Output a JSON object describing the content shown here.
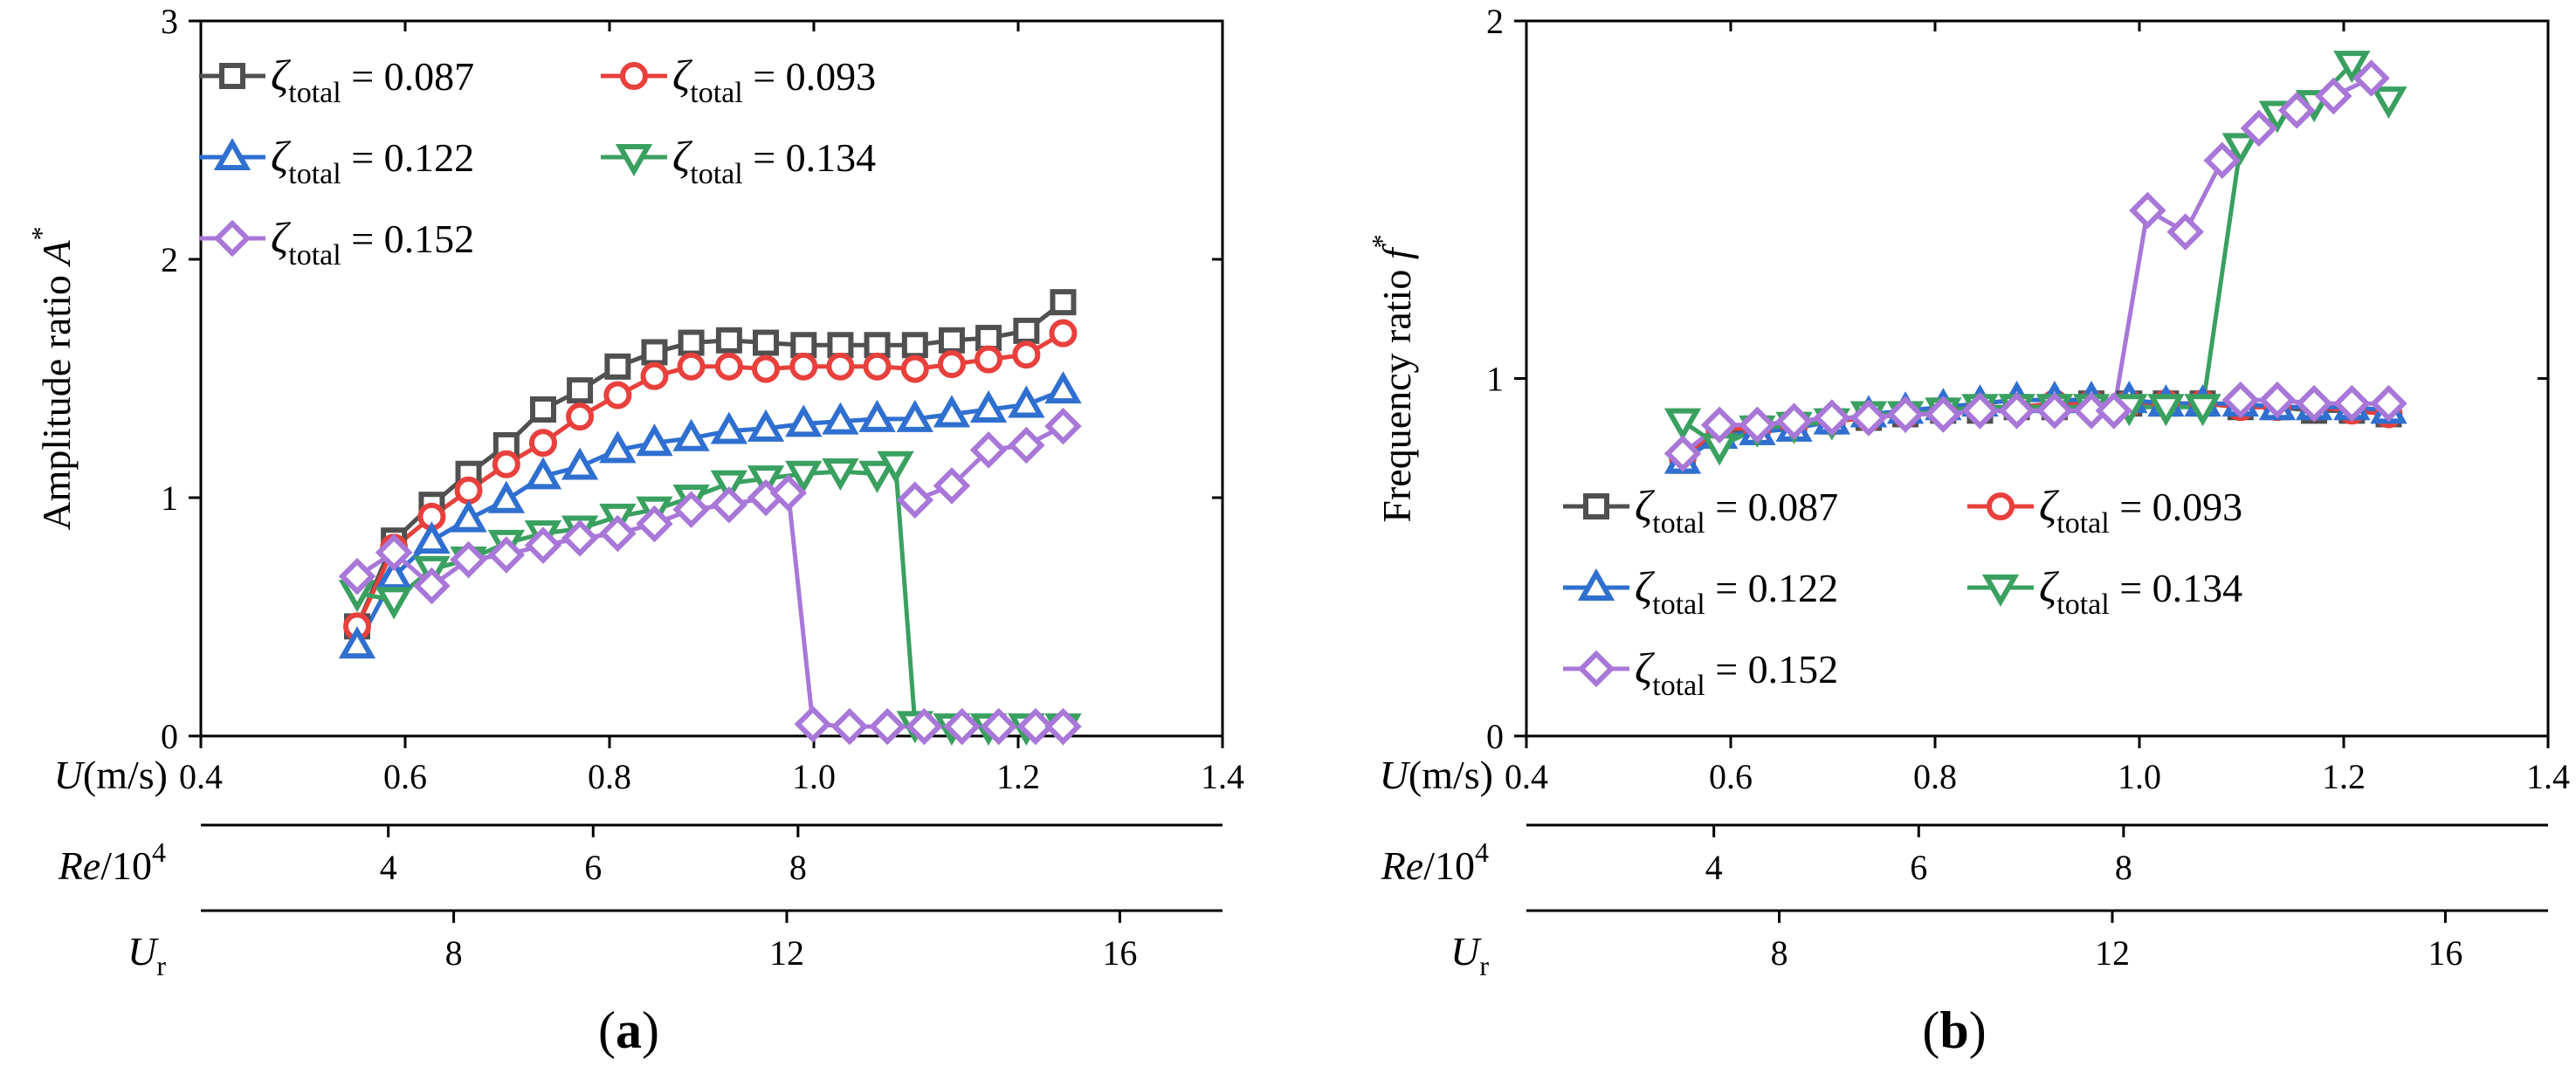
{
  "chart_data": [
    {
      "type": "line",
      "panel_label": [
        "(",
        "a",
        ")"
      ],
      "ylabel": [
        "Amplitude ratio ",
        "A",
        "*"
      ],
      "xlabel": [
        "U",
        "(m/s)"
      ],
      "xlim": [
        0.4,
        1.4
      ],
      "ylim": [
        0,
        3
      ],
      "xticks": [
        "0.4",
        "0.6",
        "0.8",
        "1.0",
        "1.2",
        "1.4"
      ],
      "yticks": [
        "0",
        "1",
        "2",
        "3"
      ],
      "legend_position": "top-left",
      "secondary_axes": [
        {
          "label": [
            "Re",
            "/10",
            "4"
          ],
          "ticks": [
            {
              "u": 0.5835,
              "label": "4"
            },
            {
              "u": 0.784,
              "label": "6"
            },
            {
              "u": 0.9845,
              "label": "8"
            }
          ]
        },
        {
          "label": [
            "U",
            "r"
          ],
          "ticks": [
            {
              "u": 0.6475,
              "label": "8"
            },
            {
              "u": 0.9735,
              "label": "12"
            },
            {
              "u": 1.2995,
              "label": "16"
            }
          ]
        }
      ],
      "series": [
        {
          "name": "0.087",
          "marker": "square",
          "color": "#505050",
          "x": [
            0.553,
            0.589,
            0.626,
            0.662,
            0.699,
            0.735,
            0.771,
            0.808,
            0.844,
            0.88,
            0.917,
            0.953,
            0.99,
            1.026,
            1.062,
            1.099,
            1.135,
            1.171,
            1.208,
            1.244
          ],
          "y": [
            0.46,
            0.82,
            0.97,
            1.1,
            1.22,
            1.37,
            1.45,
            1.55,
            1.61,
            1.65,
            1.66,
            1.65,
            1.64,
            1.64,
            1.64,
            1.64,
            1.66,
            1.67,
            1.7,
            1.82
          ]
        },
        {
          "name": "0.093",
          "marker": "circle",
          "color": "#e8403c",
          "x": [
            0.553,
            0.589,
            0.626,
            0.662,
            0.699,
            0.735,
            0.771,
            0.808,
            0.844,
            0.88,
            0.917,
            0.953,
            0.99,
            1.026,
            1.062,
            1.099,
            1.135,
            1.171,
            1.208,
            1.244
          ],
          "y": [
            0.46,
            0.79,
            0.92,
            1.03,
            1.14,
            1.23,
            1.34,
            1.43,
            1.51,
            1.55,
            1.55,
            1.54,
            1.55,
            1.55,
            1.55,
            1.54,
            1.56,
            1.58,
            1.6,
            1.69
          ]
        },
        {
          "name": "0.122",
          "marker": "triangle-up",
          "color": "#2f6fd0",
          "x": [
            0.553,
            0.589,
            0.626,
            0.662,
            0.699,
            0.735,
            0.771,
            0.808,
            0.844,
            0.88,
            0.917,
            0.953,
            0.99,
            1.026,
            1.062,
            1.099,
            1.135,
            1.171,
            1.208,
            1.244
          ],
          "y": [
            0.38,
            0.67,
            0.82,
            0.91,
            0.99,
            1.09,
            1.13,
            1.2,
            1.23,
            1.25,
            1.28,
            1.29,
            1.31,
            1.32,
            1.33,
            1.33,
            1.35,
            1.37,
            1.39,
            1.45
          ]
        },
        {
          "name": "0.134",
          "marker": "triangle-down",
          "color": "#3aa060",
          "x": [
            0.553,
            0.589,
            0.626,
            0.662,
            0.699,
            0.735,
            0.771,
            0.808,
            0.844,
            0.88,
            0.917,
            0.953,
            0.99,
            1.026,
            1.062,
            1.08,
            1.099,
            1.135,
            1.171,
            1.208,
            1.244
          ],
          "y": [
            0.6,
            0.57,
            0.7,
            0.74,
            0.81,
            0.85,
            0.87,
            0.92,
            0.95,
            1.0,
            1.06,
            1.08,
            1.1,
            1.11,
            1.1,
            1.14,
            0.05,
            0.04,
            0.04,
            0.04,
            0.04
          ]
        },
        {
          "name": "0.152",
          "marker": "diamond",
          "color": "#a877d8",
          "x": [
            0.553,
            0.589,
            0.626,
            0.662,
            0.699,
            0.735,
            0.771,
            0.808,
            0.844,
            0.88,
            0.917,
            0.953,
            0.975,
            0.999,
            1.035,
            1.072,
            1.108,
            1.145,
            1.181,
            1.217,
            1.244
          ],
          "y": [
            0.67,
            0.77,
            0.63,
            0.74,
            0.76,
            0.8,
            0.83,
            0.85,
            0.89,
            0.95,
            0.97,
            1.0,
            1.02,
            0.05,
            0.04,
            0.04,
            0.04,
            0.04,
            0.04,
            0.04,
            0.04
          ]
        },
        {
          "name": "0.152",
          "marker": "diamond",
          "color": "#a877d8",
          "x": [
            1.099,
            1.135,
            1.171,
            1.208,
            1.244
          ],
          "y": [
            0.99,
            1.05,
            1.2,
            1.22,
            1.3
          ]
        }
      ]
    },
    {
      "type": "line",
      "panel_label": [
        "(",
        "b",
        ")"
      ],
      "ylabel": [
        "Frequency ratio ",
        "f",
        "*"
      ],
      "xlabel": [
        "U",
        "(m/s)"
      ],
      "xlim": [
        0.4,
        1.4
      ],
      "ylim": [
        0,
        2
      ],
      "xticks": [
        "0.4",
        "0.6",
        "0.8",
        "1.0",
        "1.2",
        "1.4"
      ],
      "yticks": [
        "0",
        "1",
        "2"
      ],
      "legend_position": "center-left",
      "secondary_axes": [
        {
          "label": [
            "Re",
            "/10",
            "4"
          ],
          "ticks": [
            {
              "u": 0.5835,
              "label": "4"
            },
            {
              "u": 0.784,
              "label": "6"
            },
            {
              "u": 0.9845,
              "label": "8"
            }
          ]
        },
        {
          "label": [
            "U",
            "r"
          ],
          "ticks": [
            {
              "u": 0.6475,
              "label": "8"
            },
            {
              "u": 0.9735,
              "label": "12"
            },
            {
              "u": 1.2995,
              "label": "16"
            }
          ]
        }
      ],
      "series": [
        {
          "name": "0.087",
          "marker": "square",
          "color": "#505050",
          "x": [
            0.553,
            0.589,
            0.626,
            0.662,
            0.699,
            0.735,
            0.771,
            0.808,
            0.844,
            0.88,
            0.917,
            0.953,
            0.99,
            1.026,
            1.062,
            1.099,
            1.135,
            1.171,
            1.208,
            1.244
          ],
          "y": [
            0.77,
            0.85,
            0.86,
            0.87,
            0.88,
            0.89,
            0.9,
            0.91,
            0.91,
            0.92,
            0.92,
            0.93,
            0.93,
            0.93,
            0.93,
            0.92,
            0.92,
            0.91,
            0.91,
            0.9
          ]
        },
        {
          "name": "0.093",
          "marker": "circle",
          "color": "#e8403c",
          "x": [
            0.553,
            0.589,
            0.626,
            0.662,
            0.699,
            0.735,
            0.771,
            0.808,
            0.844,
            0.88,
            0.917,
            0.953,
            0.99,
            1.026,
            1.062,
            1.099,
            1.135,
            1.171,
            1.208,
            1.244
          ],
          "y": [
            0.78,
            0.86,
            0.86,
            0.87,
            0.88,
            0.89,
            0.9,
            0.91,
            0.92,
            0.92,
            0.93,
            0.93,
            0.93,
            0.93,
            0.93,
            0.92,
            0.92,
            0.92,
            0.91,
            0.9
          ]
        },
        {
          "name": "0.122",
          "marker": "triangle-up",
          "color": "#2f6fd0",
          "x": [
            0.553,
            0.589,
            0.626,
            0.662,
            0.699,
            0.735,
            0.771,
            0.808,
            0.844,
            0.88,
            0.917,
            0.953,
            0.99,
            1.026,
            1.062,
            1.099,
            1.135,
            1.171,
            1.208,
            1.244
          ],
          "y": [
            0.77,
            0.84,
            0.85,
            0.86,
            0.88,
            0.9,
            0.91,
            0.92,
            0.93,
            0.94,
            0.94,
            0.94,
            0.94,
            0.93,
            0.93,
            0.93,
            0.92,
            0.92,
            0.92,
            0.91
          ]
        },
        {
          "name": "0.134",
          "marker": "triangle-down",
          "color": "#3aa060",
          "x": [
            0.553,
            0.589,
            0.626,
            0.662,
            0.699,
            0.735,
            0.771,
            0.808,
            0.844,
            0.88,
            0.917,
            0.953,
            0.99,
            1.026,
            1.062,
            1.099,
            1.135,
            1.171,
            1.208,
            1.244
          ],
          "y": [
            0.88,
            0.81,
            0.86,
            0.87,
            0.88,
            0.9,
            0.9,
            0.91,
            0.92,
            0.92,
            0.92,
            0.92,
            0.92,
            0.92,
            0.92,
            1.65,
            1.74,
            1.77,
            1.88,
            1.78
          ]
        },
        {
          "name": "0.152",
          "marker": "diamond",
          "color": "#a877d8",
          "x": [
            0.553,
            0.589,
            0.626,
            0.662,
            0.699,
            0.735,
            0.771,
            0.808,
            0.844,
            0.88,
            0.917,
            0.953,
            0.975,
            1.008,
            1.045,
            1.081,
            1.117,
            1.154,
            1.19,
            1.227
          ],
          "y": [
            0.79,
            0.87,
            0.87,
            0.88,
            0.89,
            0.89,
            0.9,
            0.9,
            0.91,
            0.91,
            0.91,
            0.91,
            0.91,
            1.47,
            1.41,
            1.61,
            1.7,
            1.75,
            1.79,
            1.84
          ]
        },
        {
          "name": "0.152",
          "marker": "diamond",
          "color": "#a877d8",
          "x": [
            1.099,
            1.135,
            1.171,
            1.208,
            1.244
          ],
          "y": [
            0.94,
            0.94,
            0.93,
            0.93,
            0.93
          ]
        }
      ]
    }
  ],
  "legend": {
    "symbol": "ζ",
    "subscript": "total",
    "equals": " = ",
    "entries": [
      {
        "value": "0.087",
        "marker": "square",
        "color": "#505050"
      },
      {
        "value": "0.093",
        "marker": "circle",
        "color": "#e8403c"
      },
      {
        "value": "0.122",
        "marker": "triangle-up",
        "color": "#2f6fd0"
      },
      {
        "value": "0.134",
        "marker": "triangle-down",
        "color": "#3aa060"
      },
      {
        "value": "0.152",
        "marker": "diamond",
        "color": "#a877d8"
      }
    ]
  }
}
